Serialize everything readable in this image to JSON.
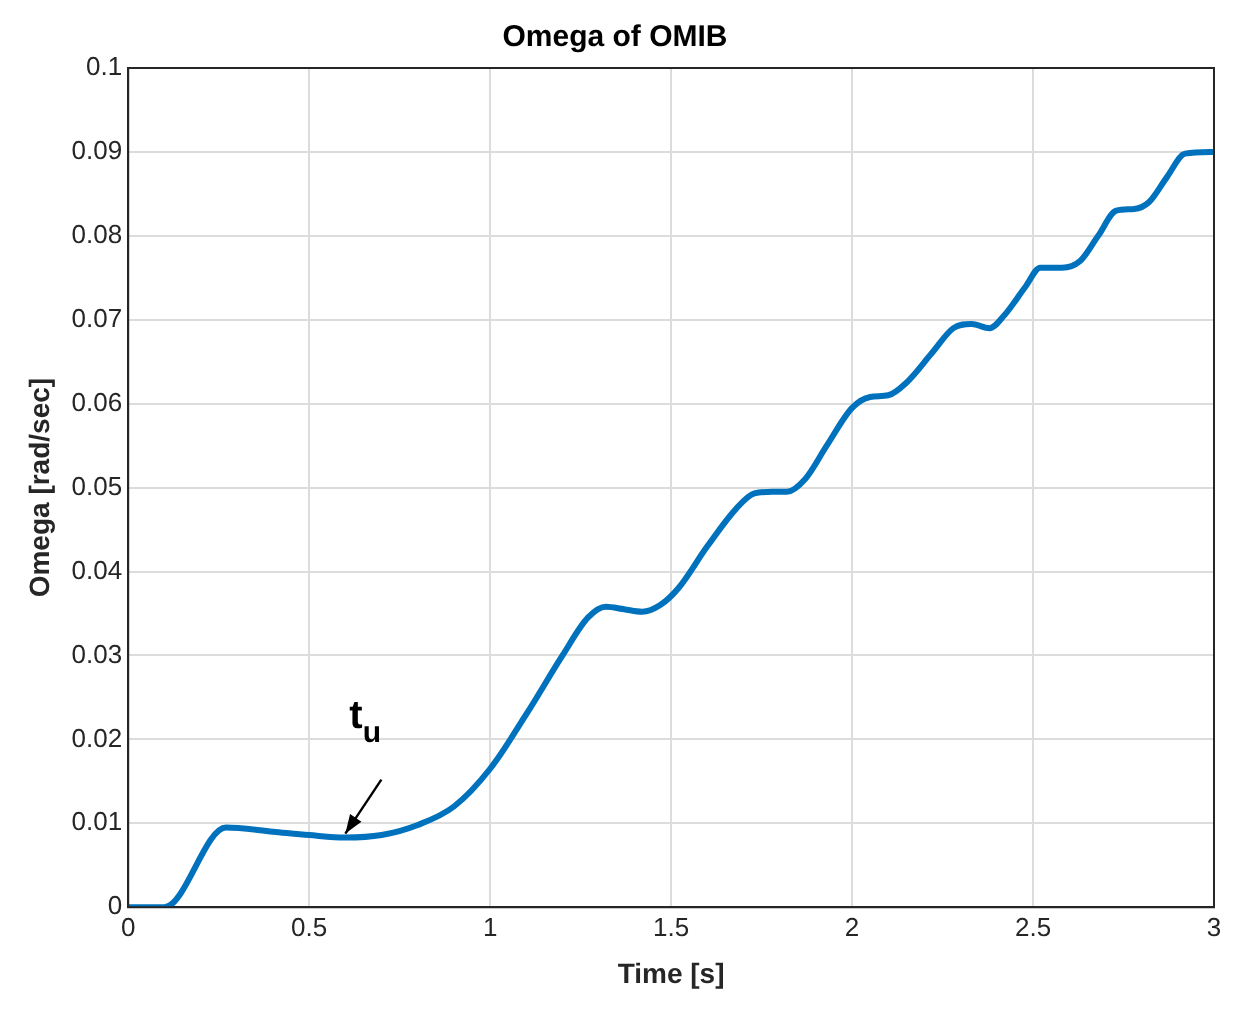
{
  "chart_data": {
    "type": "line",
    "title": "Omega of OMIB",
    "xlabel": "Time [s]",
    "ylabel": "Omega [rad/sec]",
    "x": [
      0,
      0.1,
      0.27,
      0.4,
      0.5,
      0.6,
      0.7,
      0.8,
      0.9,
      1.0,
      1.1,
      1.2,
      1.27,
      1.32,
      1.37,
      1.42,
      1.47,
      1.52,
      1.6,
      1.68,
      1.73,
      1.78,
      1.82,
      1.87,
      1.93,
      2.0,
      2.05,
      2.1,
      2.15,
      2.22,
      2.28,
      2.33,
      2.38,
      2.42,
      2.48,
      2.52,
      2.58,
      2.63,
      2.68,
      2.73,
      2.78,
      2.82,
      2.87,
      2.92,
      3.0
    ],
    "series": [
      {
        "color": "#0072bd",
        "values": [
          0,
          0,
          0.0095,
          0.009,
          0.0086,
          0.0083,
          0.0086,
          0.0098,
          0.012,
          0.0165,
          0.023,
          0.03,
          0.0345,
          0.0358,
          0.0355,
          0.0352,
          0.036,
          0.038,
          0.043,
          0.0475,
          0.0493,
          0.0495,
          0.0495,
          0.051,
          0.055,
          0.0595,
          0.0608,
          0.061,
          0.0625,
          0.066,
          0.069,
          0.0695,
          0.069,
          0.0705,
          0.074,
          0.0762,
          0.0762,
          0.077,
          0.08,
          0.083,
          0.0832,
          0.084,
          0.087,
          0.0898,
          0.09
        ]
      }
    ],
    "xlim": [
      0,
      3
    ],
    "xticks": [
      0,
      0.5,
      1,
      1.5,
      2,
      2.5,
      3
    ],
    "ylim": [
      0,
      0.1
    ],
    "yticks": [
      0,
      0.01,
      0.02,
      0.03,
      0.04,
      0.05,
      0.06,
      0.07,
      0.08,
      0.09,
      0.1
    ],
    "grid": true,
    "legend": false,
    "marker": "none",
    "line_style": "solid",
    "annotations": [
      {
        "text": "t$_{u}$",
        "x": 0.6,
        "y": 0.0083
      }
    ]
  }
}
